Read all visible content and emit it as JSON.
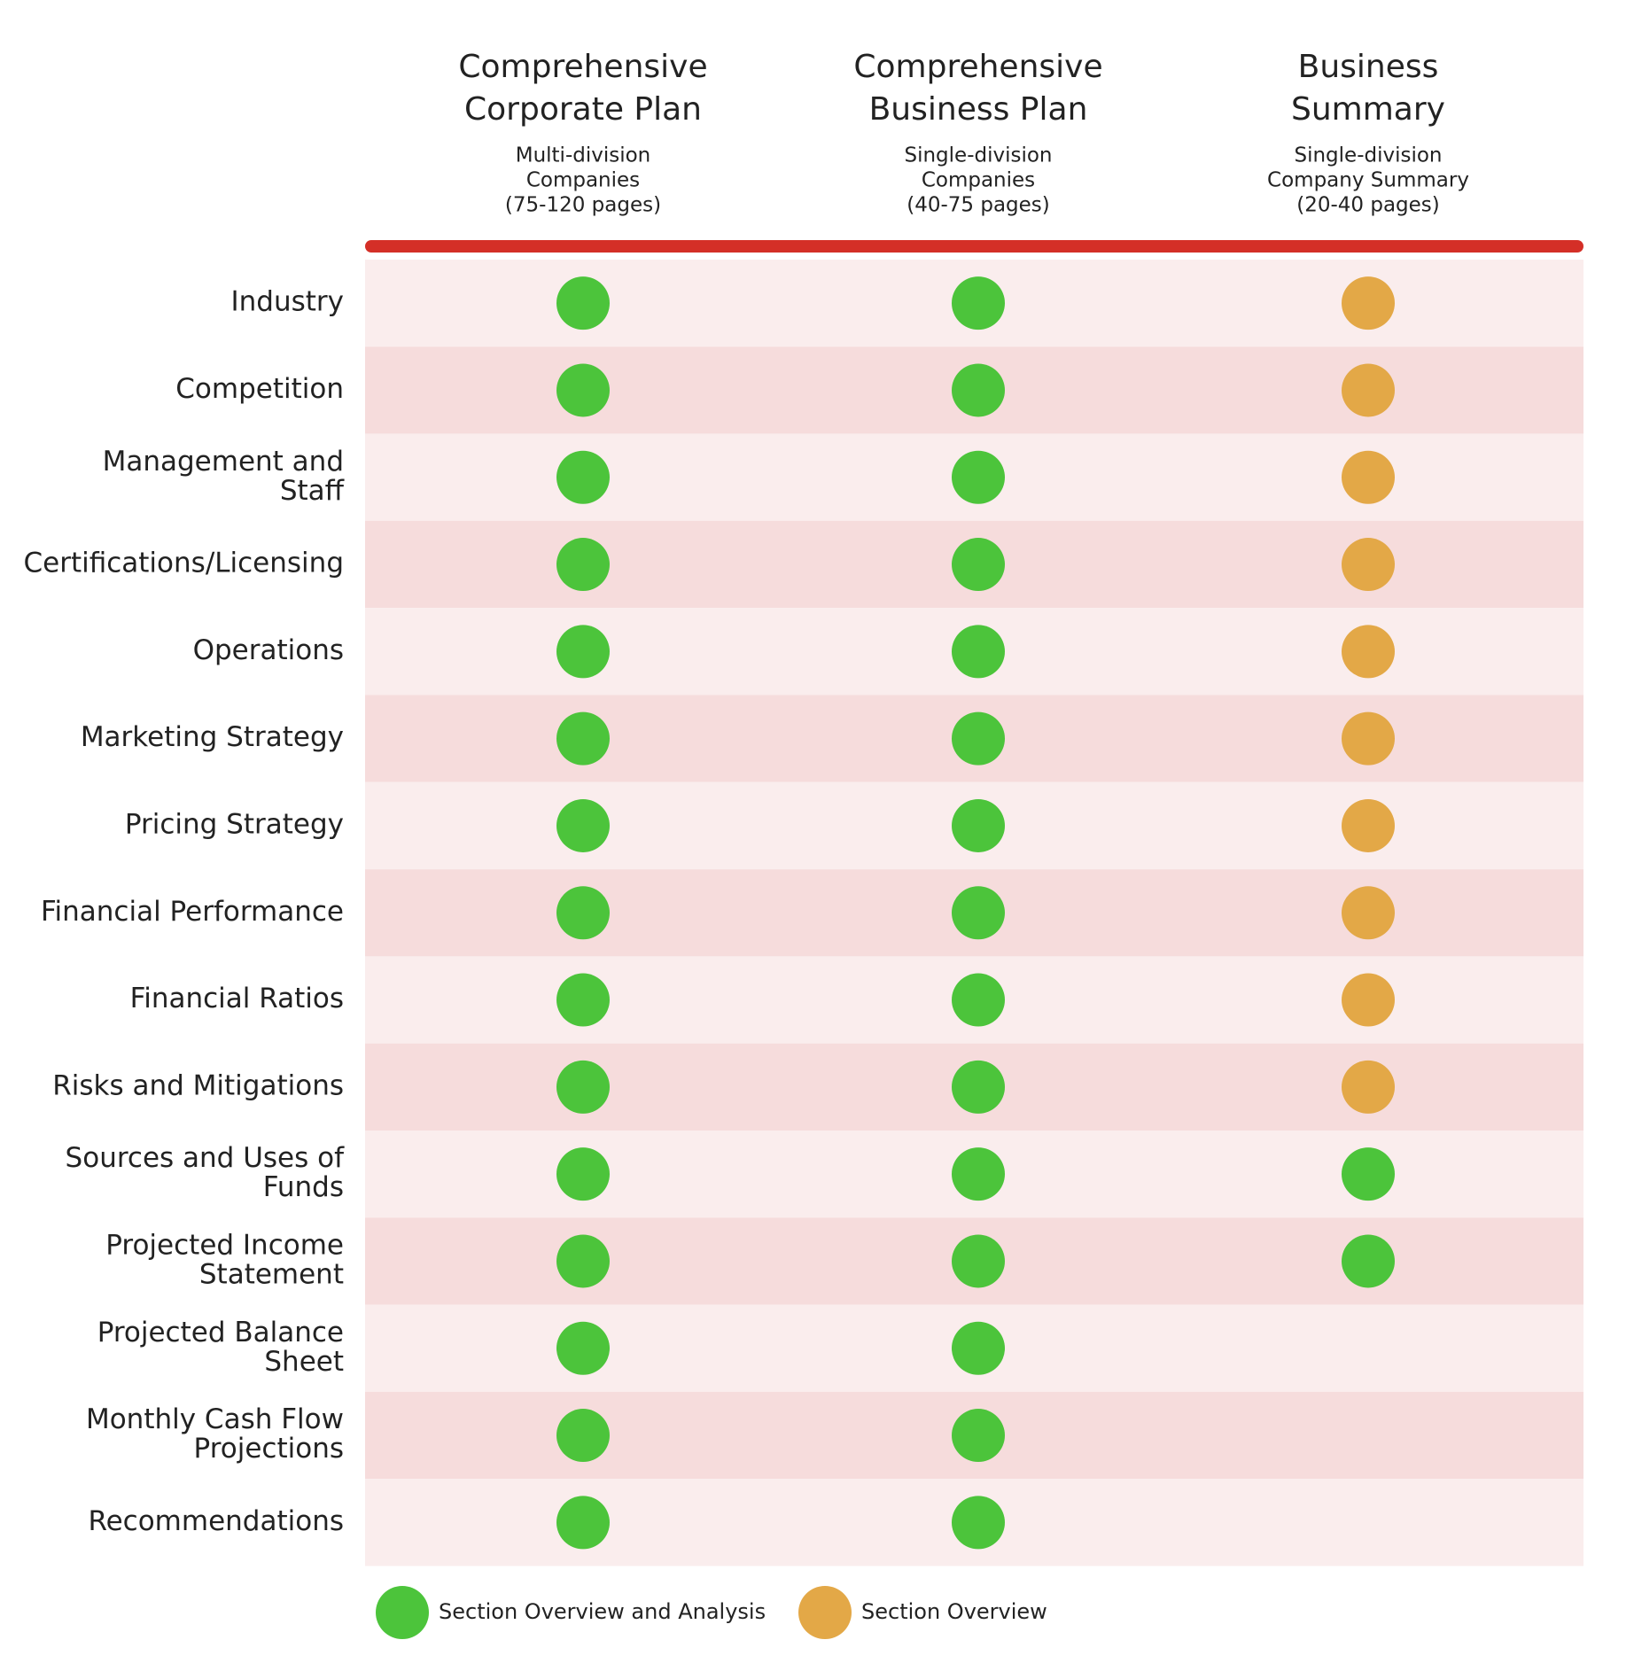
{
  "columns": [
    {
      "title": [
        "Comprehensive",
        "Corporate Plan"
      ],
      "subtitle": [
        "Multi-division",
        "Companies",
        "(75-120 pages)"
      ]
    },
    {
      "title": [
        "Comprehensive",
        "Business Plan"
      ],
      "subtitle": [
        "Single-division",
        "Companies",
        "(40-75 pages)"
      ]
    },
    {
      "title": [
        "Business",
        "Summary"
      ],
      "subtitle": [
        "Single-division",
        "Company Summary",
        "(20-40 pages)"
      ]
    }
  ],
  "rows": [
    {
      "label": [
        "Industry"
      ],
      "cells": [
        0,
        0,
        1
      ]
    },
    {
      "label": [
        "Competition"
      ],
      "cells": [
        0,
        0,
        1
      ]
    },
    {
      "label": [
        "Management and",
        "Staff"
      ],
      "cells": [
        0,
        0,
        1
      ]
    },
    {
      "label": [
        "Certifications/Licensing"
      ],
      "cells": [
        0,
        0,
        1
      ]
    },
    {
      "label": [
        "Operations"
      ],
      "cells": [
        0,
        0,
        1
      ]
    },
    {
      "label": [
        "Marketing Strategy"
      ],
      "cells": [
        0,
        0,
        1
      ]
    },
    {
      "label": [
        "Pricing Strategy"
      ],
      "cells": [
        0,
        0,
        1
      ]
    },
    {
      "label": [
        "Financial Performance"
      ],
      "cells": [
        0,
        0,
        1
      ]
    },
    {
      "label": [
        "Financial Ratios"
      ],
      "cells": [
        0,
        0,
        1
      ]
    },
    {
      "label": [
        "Risks and Mitigations"
      ],
      "cells": [
        0,
        0,
        1
      ]
    },
    {
      "label": [
        "Sources and Uses of",
        "Funds"
      ],
      "cells": [
        0,
        0,
        0
      ]
    },
    {
      "label": [
        "Projected Income",
        "Statement"
      ],
      "cells": [
        0,
        0,
        0
      ]
    },
    {
      "label": [
        "Projected Balance",
        "Sheet"
      ],
      "cells": [
        0,
        0,
        null
      ]
    },
    {
      "label": [
        "Monthly Cash Flow",
        "Projections"
      ],
      "cells": [
        0,
        0,
        null
      ]
    },
    {
      "label": [
        "Recommendations"
      ],
      "cells": [
        0,
        0,
        null
      ]
    }
  ],
  "legend": [
    {
      "label": "Section Overview and Analysis",
      "color": "#4cc43b"
    },
    {
      "label": "Section Overview",
      "color": "#e3a847"
    }
  ]
}
